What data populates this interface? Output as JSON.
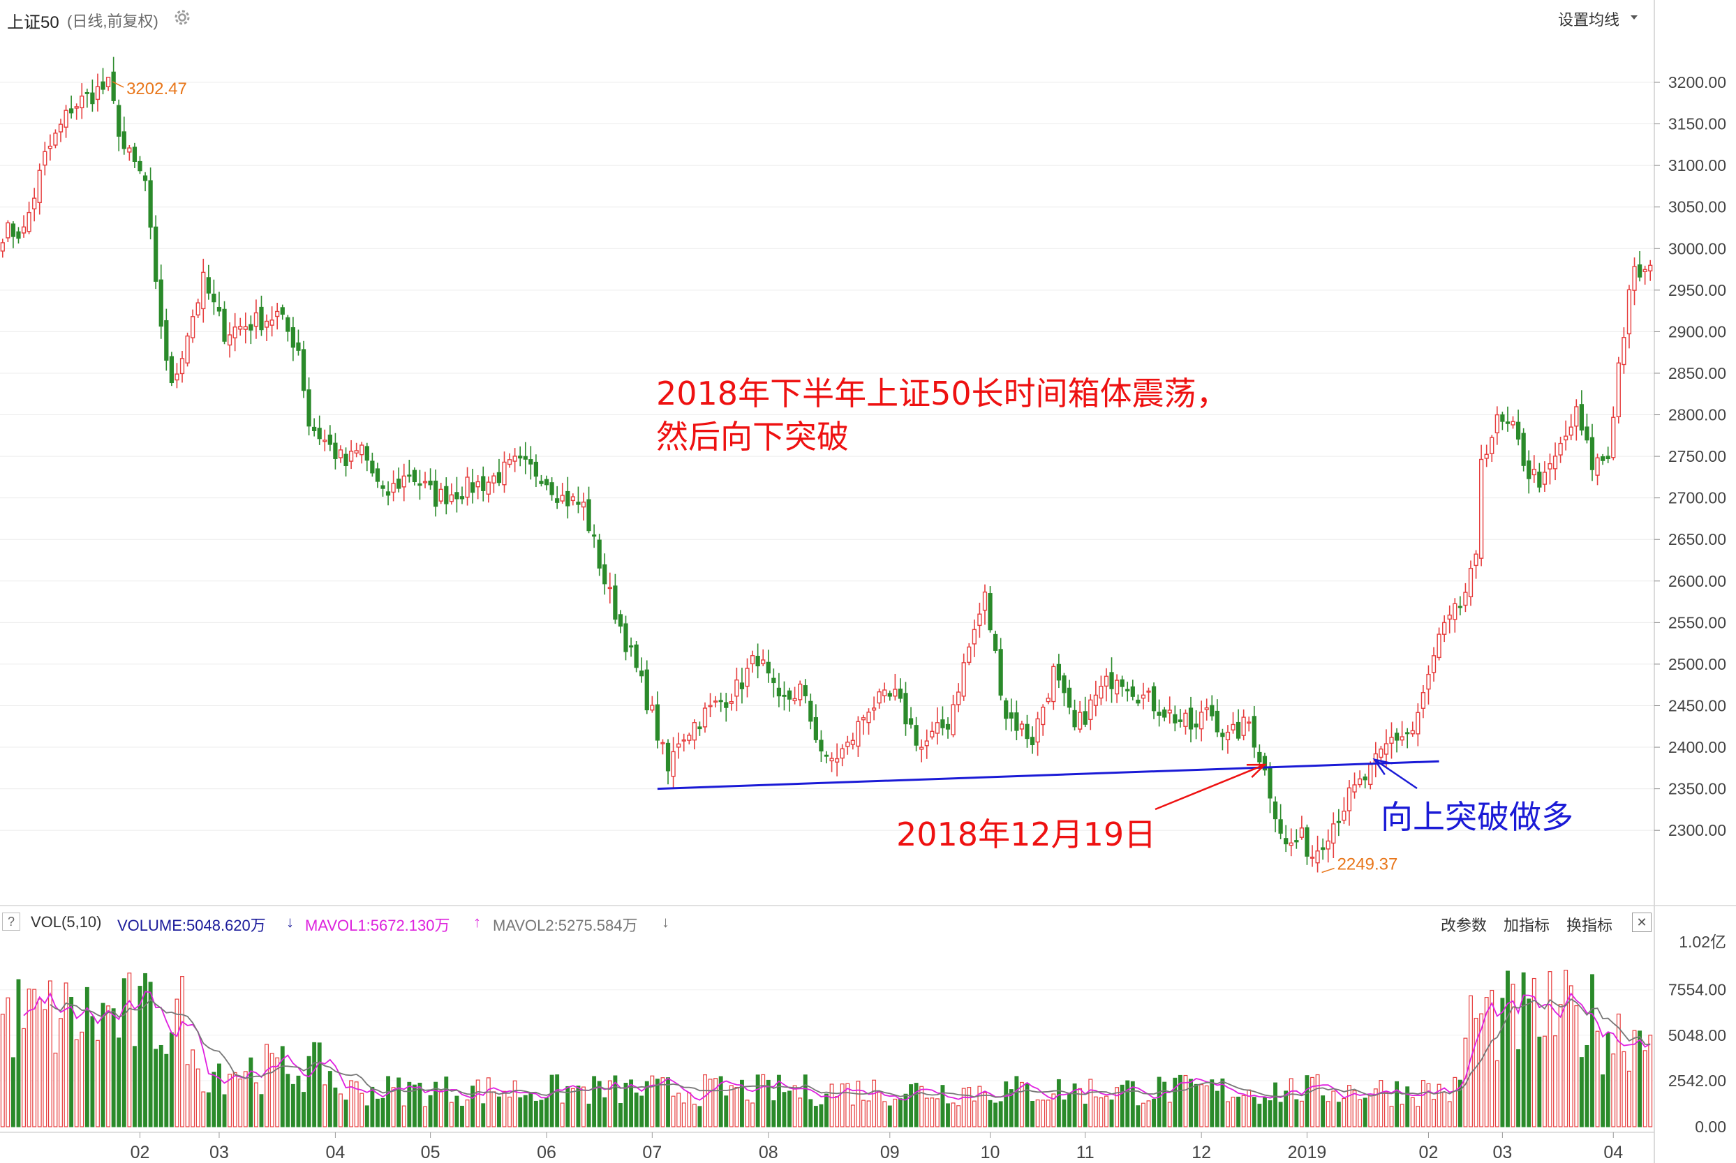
{
  "header": {
    "symbol": "上证50",
    "mode": "(日线,前复权)",
    "settings_icon": "gear-icon",
    "ma_settings_label": "设置均线",
    "ma_dropdown_icon": "caret-down-icon"
  },
  "volume_header": {
    "help_label": "?",
    "indicator": "VOL(5,10)",
    "volume_label": "VOLUME:5048.620万",
    "volume_arrow": "↓",
    "mavol1_label": "MAVOL1:5672.130万",
    "mavol1_arrow": "↑",
    "mavol2_label": "MAVOL2:5275.584万",
    "mavol2_arrow": "↓",
    "buttons": [
      "改参数",
      "加指标",
      "换指标"
    ],
    "close_label": "✕"
  },
  "annotations": {
    "range_note_line1": "2018年下半年上证50长时间箱体震荡，",
    "range_note_line2": "然后向下突破",
    "breakdown_date": "2018年12月19日",
    "breakout_note": "向上突破做多",
    "high_label": "3202.47",
    "low_label": "2249.37"
  },
  "colors": {
    "up": "#e63d3d",
    "down": "#2a8a2a",
    "support_line": "#1a1ad6",
    "red_annotation": "#ee1111",
    "blue_annotation": "#1a1ad6",
    "mavol1": "#e020e0",
    "mavol2": "#777777",
    "extreme_label": "#e8761a"
  },
  "chart_data": {
    "type": "candlestick",
    "price_axis": {
      "ticks": [
        "3200.00",
        "3150.00",
        "3100.00",
        "3050.00",
        "3000.00",
        "2950.00",
        "2900.00",
        "2850.00",
        "2800.00",
        "2750.00",
        "2700.00",
        "2650.00",
        "2600.00",
        "2550.00",
        "2500.00",
        "2450.00",
        "2400.00",
        "2350.00",
        "2300.00"
      ],
      "range": [
        2233,
        3247
      ]
    },
    "volume_axis": {
      "ticks": [
        "1.02亿",
        "7554.00",
        "5048.00",
        "2542.00",
        "0.00"
      ],
      "range": [
        0,
        10200
      ]
    },
    "x_ticks": [
      "02",
      "03",
      "04",
      "05",
      "06",
      "07",
      "08",
      "09",
      "10",
      "11",
      "12",
      "2019",
      "02",
      "03",
      "04"
    ],
    "anchors": [
      [
        "2018-01-02",
        3020
      ],
      [
        "2018-01-08",
        3110
      ],
      [
        "2018-01-15",
        3170
      ],
      [
        "2018-01-22",
        3190
      ],
      [
        "2018-01-24",
        3195
      ],
      [
        "2018-01-29",
        3120
      ],
      [
        "2018-02-02",
        3080
      ],
      [
        "2018-02-06",
        2950
      ],
      [
        "2018-02-09",
        2830
      ],
      [
        "2018-02-14",
        2900
      ],
      [
        "2018-02-26",
        2960
      ],
      [
        "2018-03-02",
        2900
      ],
      [
        "2018-03-09",
        2910
      ],
      [
        "2018-03-16",
        2920
      ],
      [
        "2018-03-22",
        2880
      ],
      [
        "2018-03-26",
        2790
      ],
      [
        "2018-04-04",
        2740
      ],
      [
        "2018-04-11",
        2760
      ],
      [
        "2018-04-17",
        2700
      ],
      [
        "2018-04-24",
        2730
      ],
      [
        "2018-05-03",
        2700
      ],
      [
        "2018-05-10",
        2710
      ],
      [
        "2018-05-17",
        2720
      ],
      [
        "2018-05-24",
        2740
      ],
      [
        "2018-05-31",
        2730
      ],
      [
        "2018-06-06",
        2700
      ],
      [
        "2018-06-12",
        2690
      ],
      [
        "2018-06-19",
        2600
      ],
      [
        "2018-06-26",
        2510
      ],
      [
        "2018-07-02",
        2440
      ],
      [
        "2018-07-05",
        2370
      ],
      [
        "2018-07-09",
        2410
      ],
      [
        "2018-07-16",
        2440
      ],
      [
        "2018-07-24",
        2470
      ],
      [
        "2018-07-30",
        2510
      ],
      [
        "2018-08-03",
        2450
      ],
      [
        "2018-08-09",
        2470
      ],
      [
        "2018-08-16",
        2380
      ],
      [
        "2018-08-22",
        2400
      ],
      [
        "2018-08-28",
        2450
      ],
      [
        "2018-09-04",
        2460
      ],
      [
        "2018-09-11",
        2400
      ],
      [
        "2018-09-18",
        2430
      ],
      [
        "2018-09-25",
        2520
      ],
      [
        "2018-09-28",
        2580
      ],
      [
        "2018-10-11",
        2440
      ],
      [
        "2018-10-18",
        2410
      ],
      [
        "2018-10-24",
        2490
      ],
      [
        "2018-10-30",
        2420
      ],
      [
        "2018-11-05",
        2460
      ],
      [
        "2018-11-09",
        2490
      ],
      [
        "2018-11-16",
        2460
      ],
      [
        "2018-11-23",
        2440
      ],
      [
        "2018-11-30",
        2420
      ],
      [
        "2018-12-04",
        2450
      ],
      [
        "2018-12-10",
        2410
      ],
      [
        "2018-12-14",
        2430
      ],
      [
        "2018-12-19",
        2370
      ],
      [
        "2018-12-25",
        2280
      ],
      [
        "2018-12-28",
        2290
      ],
      [
        "2019-01-03",
        2270
      ],
      [
        "2019-01-08",
        2300
      ],
      [
        "2019-01-14",
        2340
      ],
      [
        "2019-01-18",
        2370
      ],
      [
        "2019-01-24",
        2410
      ],
      [
        "2019-01-30",
        2420
      ],
      [
        "2019-02-01",
        2460
      ],
      [
        "2019-02-13",
        2530
      ],
      [
        "2019-02-19",
        2570
      ],
      [
        "2019-02-22",
        2620
      ],
      [
        "2019-02-25",
        2750
      ],
      [
        "2019-02-28",
        2790
      ],
      [
        "2019-03-05",
        2780
      ],
      [
        "2019-03-08",
        2730
      ],
      [
        "2019-03-13",
        2720
      ],
      [
        "2019-03-18",
        2760
      ],
      [
        "2019-03-21",
        2800
      ],
      [
        "2019-03-26",
        2740
      ],
      [
        "2019-03-29",
        2750
      ],
      [
        "2019-04-02",
        2860
      ],
      [
        "2019-04-04",
        2940
      ],
      [
        "2019-04-08",
        2970
      ]
    ],
    "extremes": {
      "high": {
        "date": "2018-01-24",
        "value": 3202.47
      },
      "low": {
        "date": "2019-01-04",
        "value": 2249.37
      }
    },
    "support_line": {
      "start": [
        "2018-07-03",
        2350
      ],
      "end": [
        "2019-02-13",
        2383
      ]
    },
    "ma_periods": [
      5,
      10
    ],
    "last_volume": 5048.62,
    "last_mavol1": 5672.13,
    "last_mavol2": 5275.584
  }
}
